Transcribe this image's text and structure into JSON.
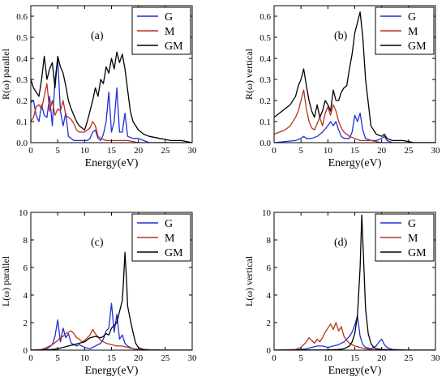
{
  "chart_data": [
    {
      "type": "line",
      "panel_label": "(a)",
      "xlabel": "Energy(eV)",
      "ylabel": "R(ω) parallel",
      "xlim": [
        0,
        30
      ],
      "ylim": [
        0,
        0.65
      ],
      "xticks": [
        0,
        5,
        10,
        15,
        20,
        25,
        30
      ],
      "yticks": [
        0.0,
        0.1,
        0.2,
        0.3,
        0.4,
        0.5,
        0.6
      ],
      "ytick_labels": [
        "0.0",
        "0.1",
        "0.2",
        "0.3",
        "0.4",
        "0.5",
        "0.6"
      ],
      "legend_position": "top-right",
      "series": [
        {
          "name": "G",
          "color": "#1f2fd6",
          "x": [
            0,
            0.5,
            1,
            1.5,
            2,
            2.5,
            3,
            3.5,
            4,
            4.5,
            5,
            5.5,
            6,
            6.5,
            7,
            7.5,
            8,
            9,
            10,
            10.5,
            11,
            11.5,
            12,
            12.5,
            13,
            13.5,
            14,
            14.5,
            15,
            15.5,
            16,
            16.5,
            17,
            17.5,
            18,
            19,
            20,
            21,
            22,
            25,
            30
          ],
          "y": [
            0.19,
            0.2,
            0.13,
            0.1,
            0.18,
            0.13,
            0.12,
            0.22,
            0.08,
            0.3,
            0.4,
            0.15,
            0.08,
            0.14,
            0.03,
            0.02,
            0.01,
            0.01,
            0.01,
            0.01,
            0.02,
            0.05,
            0.06,
            0.02,
            0.01,
            0.04,
            0.1,
            0.24,
            0.05,
            0.1,
            0.26,
            0.05,
            0.05,
            0.14,
            0.03,
            0.02,
            0.02,
            0.01,
            0.0,
            0.0,
            0.0
          ]
        },
        {
          "name": "M",
          "color": "#b8321a",
          "x": [
            0,
            0.5,
            1,
            1.5,
            2,
            2.5,
            3,
            3.5,
            4,
            4.5,
            5,
            5.5,
            6,
            6.5,
            7,
            7.5,
            8,
            8.5,
            9,
            10,
            11,
            11.5,
            12,
            12.5,
            13,
            14,
            15,
            16,
            17,
            18,
            20,
            22,
            25,
            30
          ],
          "y": [
            0.1,
            0.12,
            0.17,
            0.18,
            0.16,
            0.22,
            0.28,
            0.15,
            0.2,
            0.13,
            0.16,
            0.15,
            0.2,
            0.13,
            0.12,
            0.11,
            0.09,
            0.06,
            0.05,
            0.05,
            0.07,
            0.1,
            0.08,
            0.03,
            0.02,
            0.01,
            0.01,
            0.01,
            0.01,
            0.01,
            0.0,
            0.0,
            0.0,
            0.0
          ]
        },
        {
          "name": "GM",
          "color": "#000000",
          "x": [
            0,
            0.5,
            1,
            1.5,
            2,
            2.5,
            3,
            3.5,
            4,
            4.5,
            5,
            5.5,
            6,
            6.5,
            7,
            7.5,
            8,
            8.5,
            9,
            9.5,
            10,
            10.5,
            11,
            11.5,
            12,
            12.5,
            13,
            13.5,
            14,
            14.5,
            15,
            15.5,
            16,
            16.5,
            17,
            17.5,
            18,
            18.5,
            19,
            20,
            21,
            22,
            24,
            26,
            28,
            30
          ],
          "y": [
            0.3,
            0.26,
            0.24,
            0.22,
            0.3,
            0.41,
            0.3,
            0.35,
            0.38,
            0.26,
            0.41,
            0.36,
            0.33,
            0.27,
            0.2,
            0.16,
            0.13,
            0.1,
            0.08,
            0.07,
            0.06,
            0.1,
            0.15,
            0.2,
            0.26,
            0.22,
            0.3,
            0.28,
            0.36,
            0.33,
            0.4,
            0.35,
            0.43,
            0.38,
            0.42,
            0.35,
            0.25,
            0.15,
            0.1,
            0.06,
            0.04,
            0.03,
            0.02,
            0.01,
            0.01,
            0.0
          ]
        }
      ]
    },
    {
      "type": "line",
      "panel_label": "(b)",
      "xlabel": "Energy(eV)",
      "ylabel": "R(ω) vertical",
      "xlim": [
        0,
        30
      ],
      "ylim": [
        0,
        0.65
      ],
      "xticks": [
        0,
        5,
        10,
        15,
        20,
        25,
        30
      ],
      "yticks": [
        0.0,
        0.1,
        0.2,
        0.3,
        0.4,
        0.5,
        0.6
      ],
      "ytick_labels": [
        "0.0",
        "0.1",
        "0.2",
        "0.3",
        "0.4",
        "0.5",
        "0.6"
      ],
      "legend_position": "top-right",
      "series": [
        {
          "name": "G",
          "color": "#1f2fd6",
          "x": [
            0,
            4,
            5,
            5.5,
            6,
            7,
            8,
            9,
            10,
            10.5,
            11,
            11.5,
            12,
            12.5,
            13,
            14,
            14.5,
            15,
            15.5,
            16,
            16.5,
            17,
            18,
            19,
            20,
            20.5,
            21,
            22,
            25,
            30
          ],
          "y": [
            0.0,
            0.01,
            0.02,
            0.03,
            0.02,
            0.02,
            0.03,
            0.05,
            0.08,
            0.1,
            0.08,
            0.1,
            0.06,
            0.03,
            0.02,
            0.02,
            0.05,
            0.13,
            0.1,
            0.14,
            0.06,
            0.02,
            0.01,
            0.01,
            0.02,
            0.03,
            0.01,
            0.0,
            0.0,
            0.0
          ]
        },
        {
          "name": "M",
          "color": "#b8321a",
          "x": [
            0,
            1,
            2,
            3,
            4,
            4.5,
            5,
            5.5,
            6,
            6.5,
            7,
            7.5,
            8,
            8.5,
            9,
            9.5,
            10,
            10.5,
            11,
            11.5,
            12,
            12.5,
            13,
            14,
            15,
            16,
            17,
            18,
            20,
            22,
            25,
            30
          ],
          "y": [
            0.04,
            0.05,
            0.06,
            0.08,
            0.12,
            0.15,
            0.2,
            0.25,
            0.16,
            0.1,
            0.07,
            0.06,
            0.09,
            0.12,
            0.08,
            0.14,
            0.17,
            0.13,
            0.18,
            0.15,
            0.1,
            0.07,
            0.05,
            0.03,
            0.02,
            0.01,
            0.01,
            0.01,
            0.0,
            0.0,
            0.0,
            0.0
          ]
        },
        {
          "name": "GM",
          "color": "#000000",
          "x": [
            0,
            1,
            2,
            3,
            4,
            4.5,
            5,
            5.5,
            6,
            6.5,
            7,
            7.5,
            8,
            8.5,
            9,
            9.5,
            10,
            10.5,
            11,
            11.5,
            12,
            12.5,
            13,
            13.5,
            14,
            14.5,
            15,
            15.5,
            16,
            16.5,
            17,
            18,
            19,
            20,
            20.5,
            21,
            22,
            24,
            26,
            28,
            30
          ],
          "y": [
            0.12,
            0.14,
            0.16,
            0.18,
            0.22,
            0.27,
            0.3,
            0.35,
            0.27,
            0.2,
            0.15,
            0.12,
            0.18,
            0.12,
            0.15,
            0.2,
            0.18,
            0.15,
            0.25,
            0.2,
            0.2,
            0.24,
            0.26,
            0.27,
            0.35,
            0.42,
            0.52,
            0.57,
            0.62,
            0.5,
            0.3,
            0.08,
            0.04,
            0.03,
            0.04,
            0.02,
            0.01,
            0.01,
            0.0,
            0.0,
            0.0
          ]
        }
      ]
    },
    {
      "type": "line",
      "panel_label": "(c)",
      "xlabel": "Energy(eV)",
      "ylabel": "L(ω) parallel",
      "xlim": [
        0,
        30
      ],
      "ylim": [
        0,
        10
      ],
      "xticks": [
        0,
        5,
        10,
        15,
        20,
        25,
        30
      ],
      "yticks": [
        0,
        2,
        4,
        6,
        8,
        10
      ],
      "ytick_labels": [
        "0",
        "2",
        "4",
        "6",
        "8",
        "10"
      ],
      "legend_position": "top-right",
      "series": [
        {
          "name": "G",
          "color": "#1f2fd6",
          "x": [
            0,
            2,
            3,
            4,
            4.5,
            5,
            5.5,
            6,
            6.5,
            7,
            7.5,
            8,
            8.5,
            9,
            10,
            11,
            12,
            13,
            13.5,
            14,
            14.5,
            15,
            15.5,
            16,
            16.5,
            17,
            17.5,
            18,
            19,
            20,
            21,
            22,
            25,
            30
          ],
          "y": [
            0.0,
            0.02,
            0.1,
            0.4,
            1.0,
            2.2,
            0.6,
            1.6,
            0.9,
            1.2,
            0.5,
            0.4,
            0.3,
            0.4,
            0.2,
            0.1,
            0.3,
            0.5,
            0.8,
            1.4,
            1.6,
            3.4,
            1.3,
            2.6,
            0.8,
            1.1,
            0.5,
            0.3,
            0.1,
            0.05,
            0.02,
            0.0,
            0.0,
            0.0
          ]
        },
        {
          "name": "M",
          "color": "#b8321a",
          "x": [
            0,
            2,
            3,
            4,
            5,
            5.5,
            6,
            6.5,
            7,
            7.5,
            8,
            8.5,
            9,
            9.5,
            10,
            10.5,
            11,
            11.5,
            12,
            13,
            14,
            15,
            16,
            17,
            18,
            19,
            20,
            21,
            22,
            25,
            30
          ],
          "y": [
            0.0,
            0.05,
            0.2,
            0.4,
            0.7,
            0.9,
            1.0,
            1.2,
            1.3,
            1.4,
            1.2,
            0.9,
            0.8,
            0.6,
            0.7,
            0.9,
            1.1,
            1.5,
            1.2,
            0.7,
            0.5,
            0.4,
            0.3,
            0.3,
            0.2,
            0.1,
            0.05,
            0.02,
            0.0,
            0.0,
            0.0
          ]
        },
        {
          "name": "GM",
          "color": "#000000",
          "x": [
            0,
            3,
            4,
            5,
            6,
            7,
            8,
            9,
            10,
            11,
            12,
            13,
            13.5,
            14,
            14.5,
            15,
            15.5,
            16,
            16.5,
            17,
            17.2,
            17.5,
            17.8,
            18,
            18.5,
            19,
            19.5,
            20,
            20.5,
            21,
            22,
            25,
            30
          ],
          "y": [
            0.0,
            0.02,
            0.05,
            0.1,
            0.2,
            0.3,
            0.4,
            0.5,
            0.6,
            0.9,
            1.0,
            0.9,
            1.0,
            1.2,
            1.1,
            1.6,
            1.8,
            2.0,
            2.8,
            3.6,
            4.8,
            7.1,
            5.0,
            3.2,
            2.2,
            1.3,
            0.5,
            0.2,
            0.1,
            0.05,
            0.02,
            0.0,
            0.0
          ]
        }
      ]
    },
    {
      "type": "line",
      "panel_label": "(d)",
      "xlabel": "Energy(eV)",
      "ylabel": "L(ω) vertical",
      "xlim": [
        0,
        30
      ],
      "ylim": [
        0,
        10
      ],
      "xticks": [
        0,
        5,
        10,
        15,
        20,
        25,
        30
      ],
      "yticks": [
        0,
        2,
        4,
        6,
        8,
        10
      ],
      "ytick_labels": [
        "0",
        "2",
        "4",
        "6",
        "8",
        "10"
      ],
      "legend_position": "top-right",
      "series": [
        {
          "name": "G",
          "color": "#1f2fd6",
          "x": [
            0,
            4,
            5,
            6,
            7,
            8,
            9,
            10,
            11,
            12,
            13,
            13.5,
            14,
            14.5,
            15,
            15.5,
            16,
            16.5,
            17,
            18,
            19,
            19.5,
            20,
            20.5,
            21,
            22,
            25,
            30
          ],
          "y": [
            0.0,
            0.02,
            0.05,
            0.1,
            0.2,
            0.3,
            0.3,
            0.2,
            0.3,
            0.4,
            0.6,
            0.8,
            1.0,
            1.3,
            1.8,
            2.5,
            1.0,
            0.4,
            0.2,
            0.1,
            0.3,
            0.6,
            0.8,
            0.4,
            0.2,
            0.05,
            0.0,
            0.0
          ]
        },
        {
          "name": "M",
          "color": "#b8321a",
          "x": [
            0,
            4,
            5,
            5.5,
            6,
            6.5,
            7,
            7.5,
            8,
            8.5,
            9,
            9.5,
            10,
            10.5,
            11,
            11.5,
            12,
            12.5,
            13,
            13.5,
            14,
            15,
            16,
            17,
            18,
            19,
            20,
            25,
            30
          ],
          "y": [
            0.0,
            0.05,
            0.2,
            0.4,
            0.6,
            0.9,
            0.7,
            0.5,
            0.8,
            0.6,
            0.9,
            1.3,
            1.6,
            1.9,
            1.5,
            2.0,
            1.4,
            1.7,
            1.0,
            0.7,
            0.5,
            0.3,
            0.2,
            0.1,
            0.05,
            0.02,
            0.0,
            0.0,
            0.0
          ]
        },
        {
          "name": "GM",
          "color": "#000000",
          "x": [
            0,
            10,
            12,
            13,
            14,
            14.5,
            15,
            15.5,
            16,
            16.3,
            16.6,
            17,
            17.5,
            18,
            18.5,
            19,
            20,
            22,
            25,
            30
          ],
          "y": [
            0.0,
            0.02,
            0.05,
            0.1,
            0.3,
            0.6,
            1.2,
            2.5,
            6.0,
            9.8,
            7.0,
            3.0,
            1.2,
            0.5,
            0.2,
            0.1,
            0.05,
            0.02,
            0.0,
            0.0
          ]
        }
      ]
    }
  ]
}
